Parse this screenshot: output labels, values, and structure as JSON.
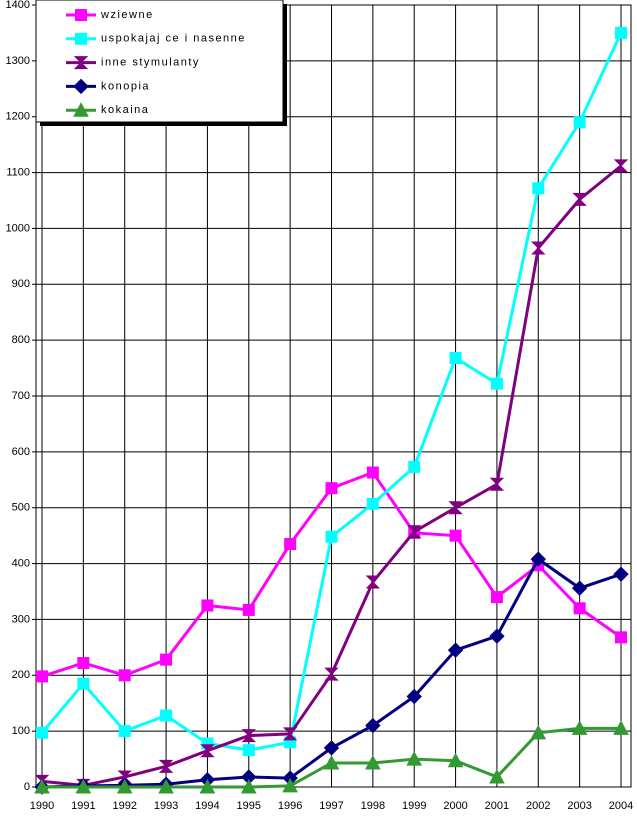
{
  "chart_data": {
    "type": "line",
    "categories": [
      "1990",
      "1991",
      "1992",
      "1993",
      "1994",
      "1995",
      "1996",
      "1997",
      "1998",
      "1999",
      "2000",
      "2001",
      "2002",
      "2003",
      "2004"
    ],
    "series": [
      {
        "name": "wziewne",
        "color": "#ff00ff",
        "marker": "square",
        "values": [
          198,
          222,
          200,
          228,
          325,
          317,
          435,
          535,
          563,
          455,
          450,
          340,
          397,
          320,
          268
        ]
      },
      {
        "name": "uspokajaj ce i nasenne",
        "color": "#00ffff",
        "marker": "square",
        "values": [
          97,
          185,
          100,
          128,
          78,
          66,
          80,
          448,
          507,
          573,
          768,
          722,
          1072,
          1190,
          1350
        ]
      },
      {
        "name": "inne stymulanty",
        "color": "#800080",
        "marker": "star",
        "values": [
          10,
          3,
          18,
          37,
          65,
          92,
          95,
          202,
          367,
          457,
          500,
          542,
          965,
          1052,
          1112
        ]
      },
      {
        "name": "konopia",
        "color": "#000080",
        "marker": "diamond",
        "values": [
          0,
          2,
          3,
          5,
          13,
          18,
          16,
          70,
          110,
          162,
          245,
          270,
          408,
          356,
          381
        ]
      },
      {
        "name": "kokaina",
        "color": "#339933",
        "marker": "triangle",
        "values": [
          0,
          0,
          0,
          0,
          0,
          0,
          2,
          43,
          43,
          50,
          47,
          18,
          97,
          105,
          105
        ]
      }
    ],
    "ylim": [
      0,
      1400
    ],
    "yticks": [
      0,
      100,
      200,
      300,
      400,
      500,
      600,
      700,
      800,
      900,
      1000,
      1100,
      1200,
      1300,
      1400
    ],
    "grid": true,
    "legend": "top-left"
  }
}
